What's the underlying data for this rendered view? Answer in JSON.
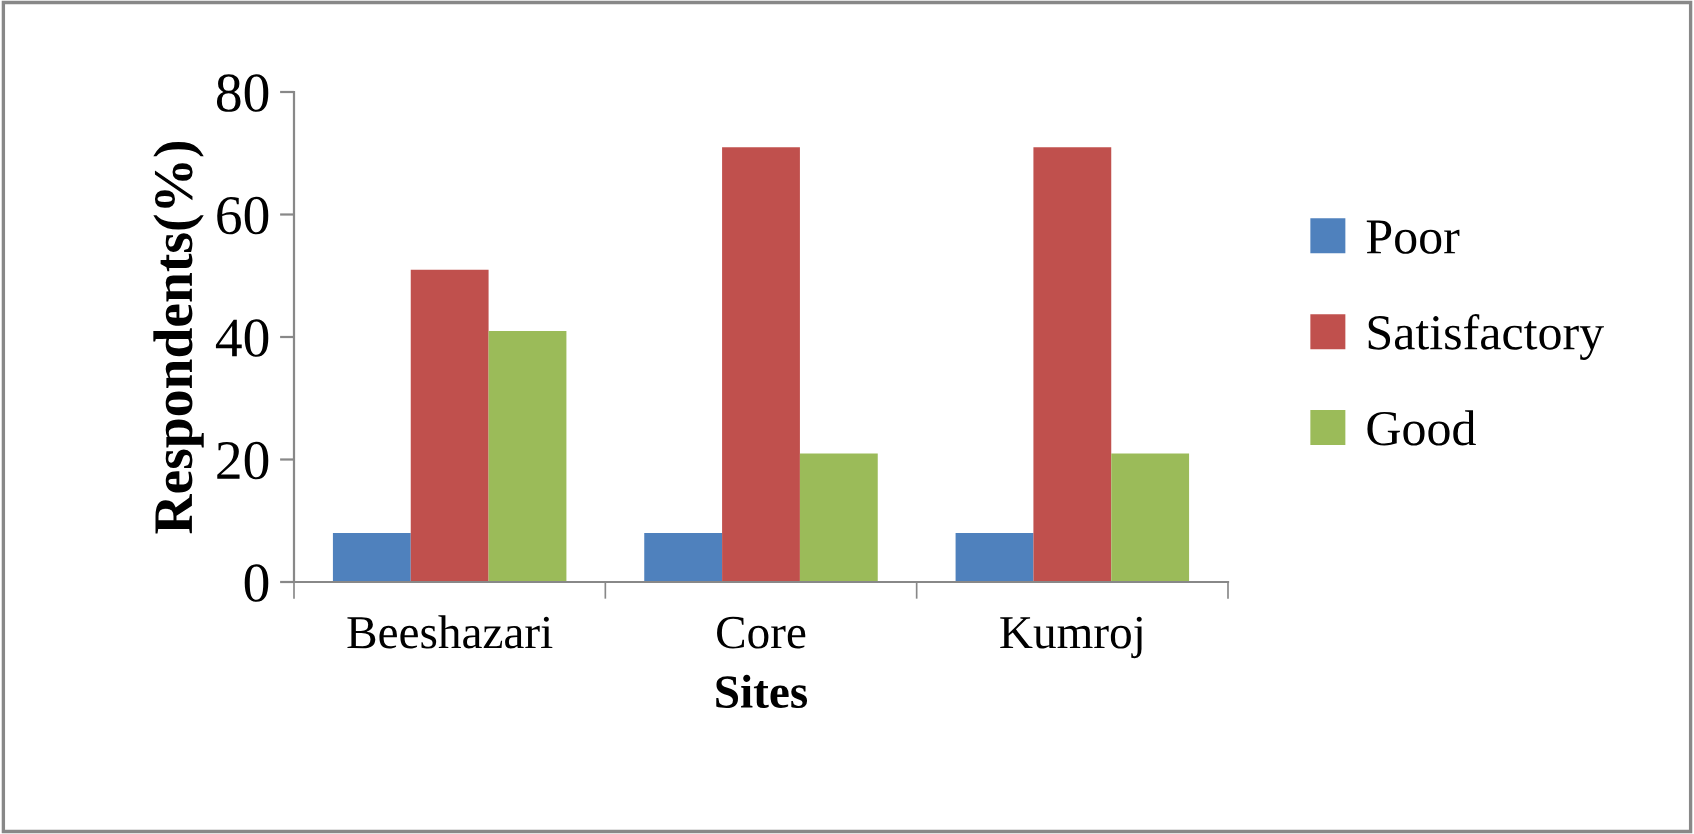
{
  "chart_data": {
    "type": "bar",
    "xlabel": "Sites",
    "ylabel": "Respondents(%)",
    "categories": [
      "Beeshazari",
      "Core",
      "Kumroj"
    ],
    "series": [
      {
        "name": "Poor",
        "color": "#4f81bd",
        "values": [
          8,
          8,
          8
        ]
      },
      {
        "name": "Satisfactory",
        "color": "#c0504d",
        "values": [
          51,
          71,
          71
        ]
      },
      {
        "name": "Good",
        "color": "#9bbb59",
        "values": [
          41,
          21,
          21
        ]
      }
    ],
    "ylim": [
      0,
      80
    ],
    "yticks": [
      0,
      20,
      40,
      60,
      80
    ],
    "grid": false,
    "legend": "right"
  }
}
